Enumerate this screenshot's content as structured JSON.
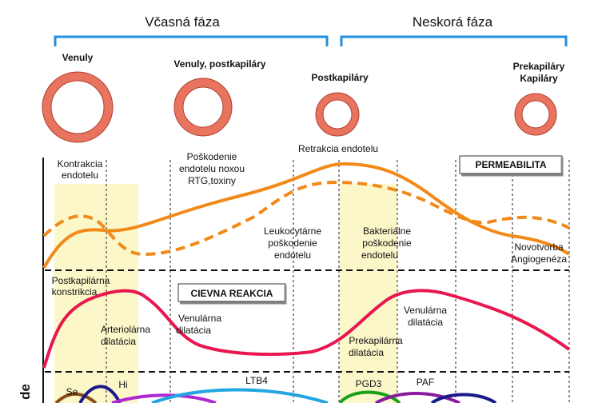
{
  "phases": {
    "early": "Včasná fáza",
    "late": "Neskorá fáza"
  },
  "vessels": {
    "venules": [
      "Venuly"
    ],
    "venules_postcap": [
      "Venuly, postkapiláry"
    ],
    "postcap": [
      "Postkapiláry"
    ],
    "precap": [
      "Prekapiláry",
      "Kapiláry"
    ]
  },
  "permeability": {
    "title": "PERMEABILITA",
    "contraction": [
      "Kontrakcia",
      "endotelu"
    ],
    "noxa": [
      "Poškodenie",
      "endotelu noxou",
      "RTG,toxiny"
    ],
    "retraction": [
      "Retrakcia endotelu"
    ],
    "leukocyte": [
      "Leukocytárne",
      "poškodenie",
      "endotelu"
    ],
    "bacterial": [
      "Bakteriálne",
      "poškodenie",
      "endotelu"
    ],
    "angiogenesis": [
      "Novotvorba",
      "Angiogenéza"
    ]
  },
  "vascular": {
    "title": "CIEVNA REAKCIA",
    "postcap_constriction": [
      "Postkapilárna",
      "konstrikcia"
    ],
    "arteriolar": [
      "Arteriolárna",
      "dilatácia"
    ],
    "venular_left": [
      "Venulárna",
      "dilatácia"
    ],
    "precap_dilation": [
      "Prekapilárna",
      "dilatácia"
    ],
    "venular_right": [
      "Venulárna",
      "dilatácia"
    ]
  },
  "mediators": {
    "se": "Se",
    "hi": "Hi",
    "ltb4": "LTB4",
    "pgd3": "PGD3",
    "paf": "PAF"
  },
  "side_label": "de"
}
